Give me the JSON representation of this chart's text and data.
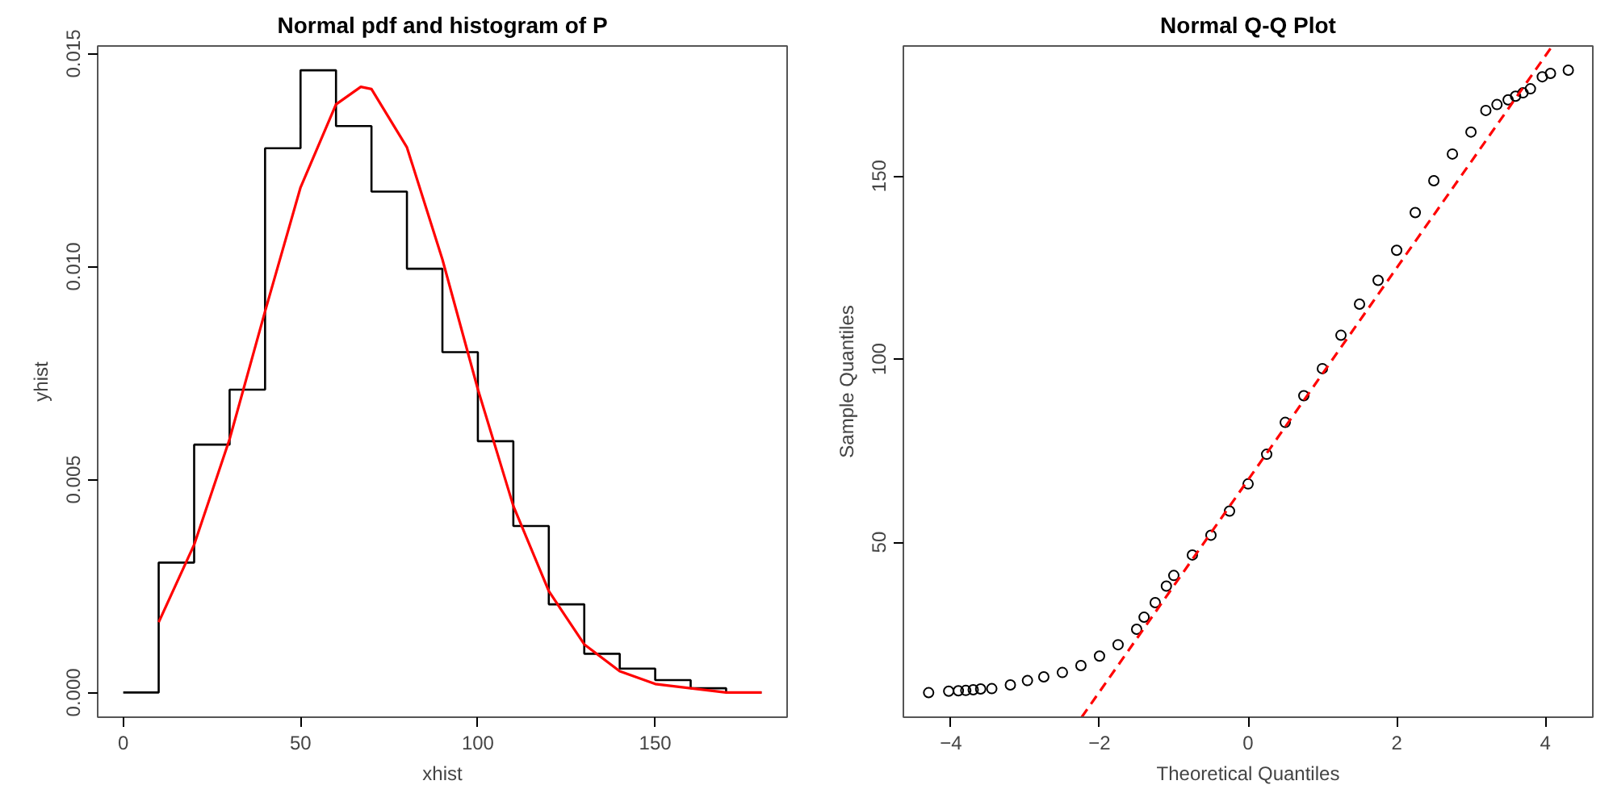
{
  "chart_data": [
    {
      "type": "line",
      "title": "Normal pdf and histogram of P",
      "xlabel": "xhist",
      "ylabel": "yhist",
      "xlim": [
        -7.2,
        187.2
      ],
      "ylim": [
        -0.00058,
        0.01518
      ],
      "xticks": [
        0,
        50,
        100,
        150
      ],
      "yticks": [
        {
          "value": 0,
          "label": "0.000"
        },
        {
          "value": 0.005,
          "label": "0.005"
        },
        {
          "value": 0.01,
          "label": "0.010"
        },
        {
          "value": 0.015,
          "label": "0.015"
        }
      ],
      "grid": false,
      "marker": "none",
      "series": [
        {
          "type": "step",
          "color": "#000000",
          "line_style": "solid",
          "x": [
            0,
            10,
            20,
            30,
            40,
            50,
            60,
            70,
            80,
            90,
            100,
            110,
            120,
            130,
            140,
            150,
            160,
            170,
            180
          ],
          "values": [
            0,
            0.00305,
            0.00582,
            0.00711,
            0.01278,
            0.01461,
            0.0133,
            0.01176,
            0.00995,
            0.00799,
            0.0059,
            0.00391,
            0.00207,
            0.00091,
            0.00056,
            0.00029,
            0.0001,
            0,
            0
          ]
        },
        {
          "color": "#ff0000",
          "line_style": "solid",
          "x": [
            10,
            20,
            30,
            40,
            50,
            60,
            67,
            70,
            80,
            90,
            100,
            110,
            120,
            130,
            140,
            150,
            160,
            170,
            180
          ],
          "values": [
            0.00165,
            0.00347,
            0.00595,
            0.00895,
            0.01186,
            0.01381,
            0.01422,
            0.01417,
            0.0128,
            0.01017,
            0.00712,
            0.00438,
            0.00238,
            0.00113,
            0.0005,
            0.0002,
            0.0001,
            0,
            0
          ]
        }
      ]
    },
    {
      "type": "scatter",
      "title": "Normal Q-Q Plot",
      "xlabel": "Theoretical Quantiles",
      "ylabel": "Sample Quantiles",
      "xlim": [
        -4.64,
        4.64
      ],
      "ylim": [
        2.2,
        185.5
      ],
      "xticks": [
        -4,
        -2,
        0,
        2,
        4
      ],
      "yticks": [
        50,
        100,
        150
      ],
      "grid": false,
      "series": [
        {
          "marker": "circle",
          "color": "#000000",
          "x": [
            -4.3,
            -4.03,
            -3.9,
            -3.8,
            -3.7,
            -3.6,
            -3.45,
            -3.2,
            -2.97,
            -2.75,
            -2.5,
            -2.25,
            -2.0,
            -1.75,
            -1.5,
            -1.4,
            -1.25,
            -1.1,
            -1.0,
            -0.75,
            -0.5,
            -0.25,
            0,
            0.25,
            0.5,
            0.75,
            1.0,
            1.25,
            1.5,
            1.75,
            2.0,
            2.25,
            2.5,
            2.75,
            3.0,
            3.2,
            3.35,
            3.5,
            3.6,
            3.7,
            3.8,
            3.96,
            4.07,
            4.31
          ],
          "values": [
            8.9,
            9.3,
            9.4,
            9.5,
            9.7,
            9.9,
            10.0,
            11.0,
            12.2,
            13.2,
            14.4,
            16.3,
            18.9,
            22.0,
            26.2,
            29.5,
            33.5,
            38.0,
            40.9,
            46.5,
            51.9,
            58.5,
            65.9,
            74.0,
            82.7,
            90.0,
            97.4,
            106.5,
            115.0,
            121.5,
            129.7,
            140.0,
            148.7,
            156.0,
            162.0,
            167.9,
            169.5,
            170.8,
            171.8,
            172.7,
            173.8,
            177.1,
            178.0,
            178.9
          ]
        },
        {
          "type": "line",
          "marker": "none",
          "color": "#ff0000",
          "line_style": "dashed",
          "x": [
            -2.24,
            4.07
          ],
          "values": [
            2.2,
            184.8
          ]
        }
      ]
    }
  ]
}
